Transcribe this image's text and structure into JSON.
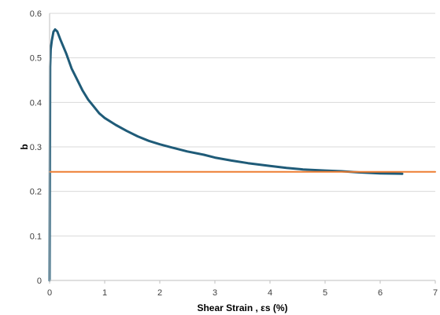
{
  "chart_data": {
    "type": "line",
    "title": "",
    "xlabel": "Shear Strain , εs (%)",
    "ylabel": "b",
    "xlim": [
      0,
      7
    ],
    "ylim": [
      0,
      0.6
    ],
    "xticks": [
      "0",
      "1",
      "2",
      "3",
      "4",
      "5",
      "6",
      "7"
    ],
    "yticks": [
      "0",
      "0.1",
      "0.2",
      "0.3",
      "0.4",
      "0.5",
      "0.6"
    ],
    "grid": "horizontal",
    "legend": "none",
    "series": [
      {
        "color": "#1f5b78",
        "x": [
          0.0,
          0.01,
          0.02,
          0.04,
          0.07,
          0.1,
          0.14,
          0.2,
          0.3,
          0.4,
          0.5,
          0.6,
          0.7,
          0.8,
          0.9,
          1.0,
          1.2,
          1.4,
          1.6,
          1.8,
          2.0,
          2.2,
          2.5,
          2.8,
          3.0,
          3.3,
          3.6,
          4.0,
          4.3,
          4.6,
          5.0,
          5.3,
          5.6,
          6.0,
          6.4
        ],
        "y": [
          0.0,
          0.48,
          0.52,
          0.54,
          0.56,
          0.565,
          0.56,
          0.54,
          0.51,
          0.475,
          0.45,
          0.425,
          0.405,
          0.39,
          0.375,
          0.365,
          0.35,
          0.337,
          0.325,
          0.315,
          0.307,
          0.3,
          0.29,
          0.282,
          0.275,
          0.268,
          0.262,
          0.256,
          0.252,
          0.249,
          0.247,
          0.246,
          0.244,
          0.242,
          0.241
        ]
      },
      {
        "color": "#ed7d31",
        "x": [
          0,
          7
        ],
        "y": [
          0.244,
          0.244
        ]
      }
    ]
  }
}
